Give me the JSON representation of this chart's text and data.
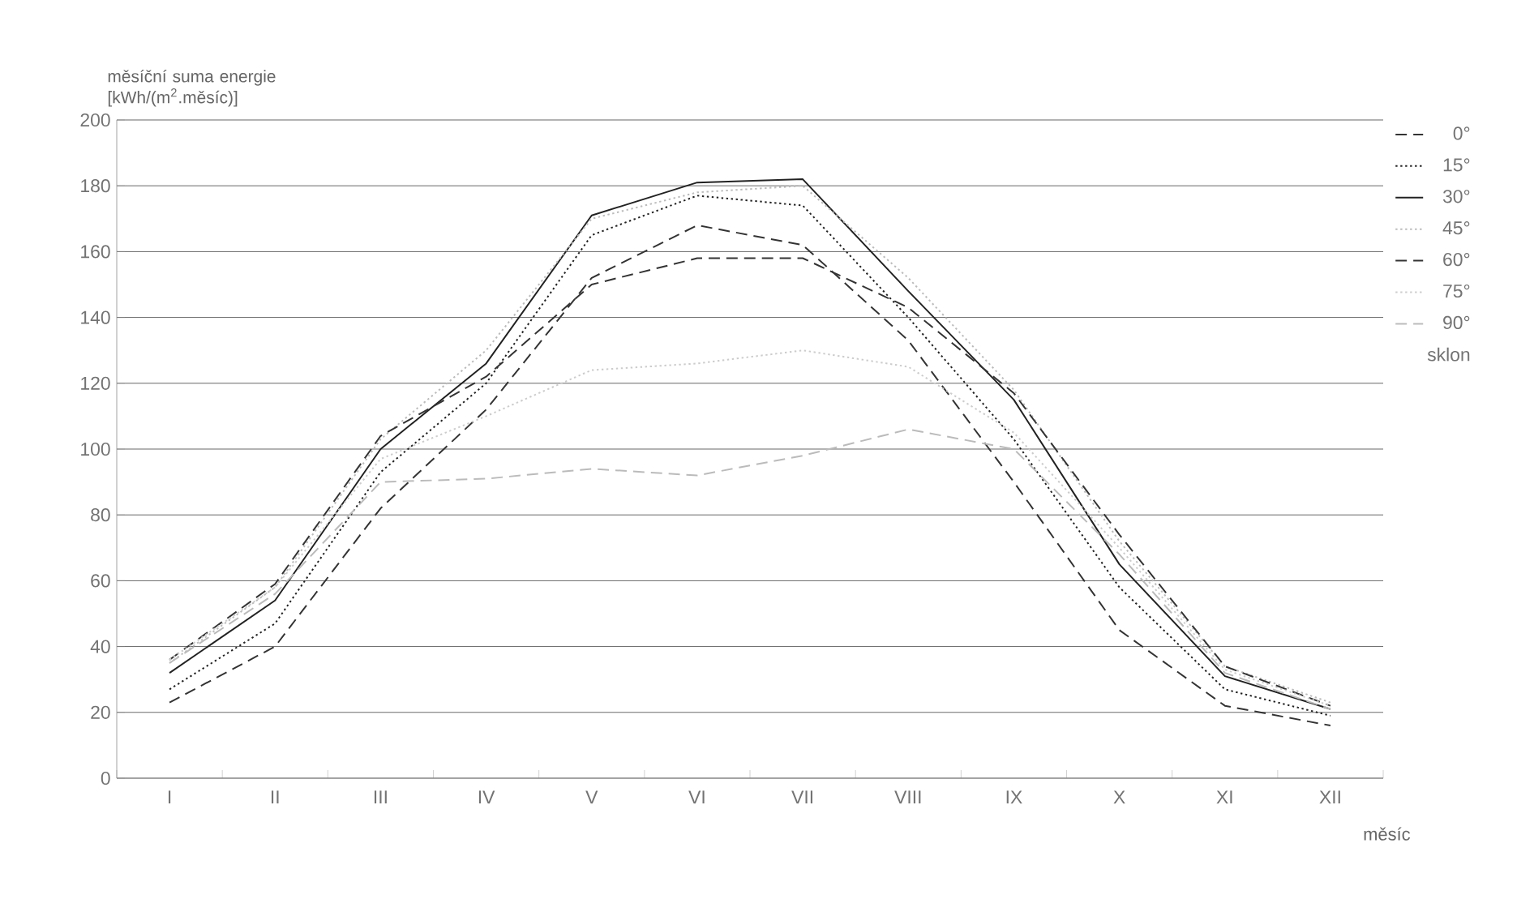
{
  "chart_data": {
    "type": "line",
    "ylabel": "měsíční suma energie [kWh/(m$^{2}$.měsíc)]",
    "xlabel": "měsíc",
    "legend_title": "sklon",
    "legend": "right",
    "categories": [
      "I",
      "II",
      "III",
      "IV",
      "V",
      "VI",
      "VII",
      "VIII",
      "IX",
      "X",
      "XI",
      "XII"
    ],
    "ylim": [
      0,
      200
    ],
    "yticks": [
      0,
      20,
      40,
      60,
      80,
      100,
      120,
      140,
      160,
      180,
      200
    ],
    "grid": "y",
    "marker": "none",
    "series": [
      {
        "name": "0°",
        "color": "#333333",
        "line_style": "dashed",
        "values": [
          23,
          40,
          82,
          112,
          152,
          168,
          162,
          133,
          90,
          45,
          22,
          16
        ]
      },
      {
        "name": "15°",
        "color": "#222222",
        "line_style": "dotted",
        "values": [
          27,
          47,
          93,
          120,
          165,
          177,
          174,
          140,
          103,
          58,
          27,
          19
        ]
      },
      {
        "name": "30°",
        "color": "#222222",
        "line_style": "solid",
        "values": [
          32,
          54,
          100,
          126,
          171,
          181,
          182,
          148,
          115,
          65,
          31,
          21
        ]
      },
      {
        "name": "45°",
        "color": "#bbbbbb",
        "line_style": "dotted",
        "values": [
          35,
          58,
          103,
          130,
          170,
          178,
          180,
          152,
          118,
          72,
          34,
          23
        ]
      },
      {
        "name": "60°",
        "color": "#333333",
        "line_style": "dashed",
        "values": [
          36,
          59,
          104,
          122,
          150,
          158,
          158,
          143,
          117,
          74,
          34,
          22
        ]
      },
      {
        "name": "75°",
        "color": "#cccccc",
        "line_style": "dotted",
        "values": [
          36,
          58,
          97,
          110,
          124,
          126,
          130,
          125,
          105,
          70,
          33,
          22
        ]
      },
      {
        "name": "90°",
        "color": "#bbbbbb",
        "line_style": "dashed",
        "values": [
          35,
          56,
          90,
          91,
          94,
          92,
          98,
          106,
          100,
          68,
          32,
          21
        ]
      }
    ]
  }
}
